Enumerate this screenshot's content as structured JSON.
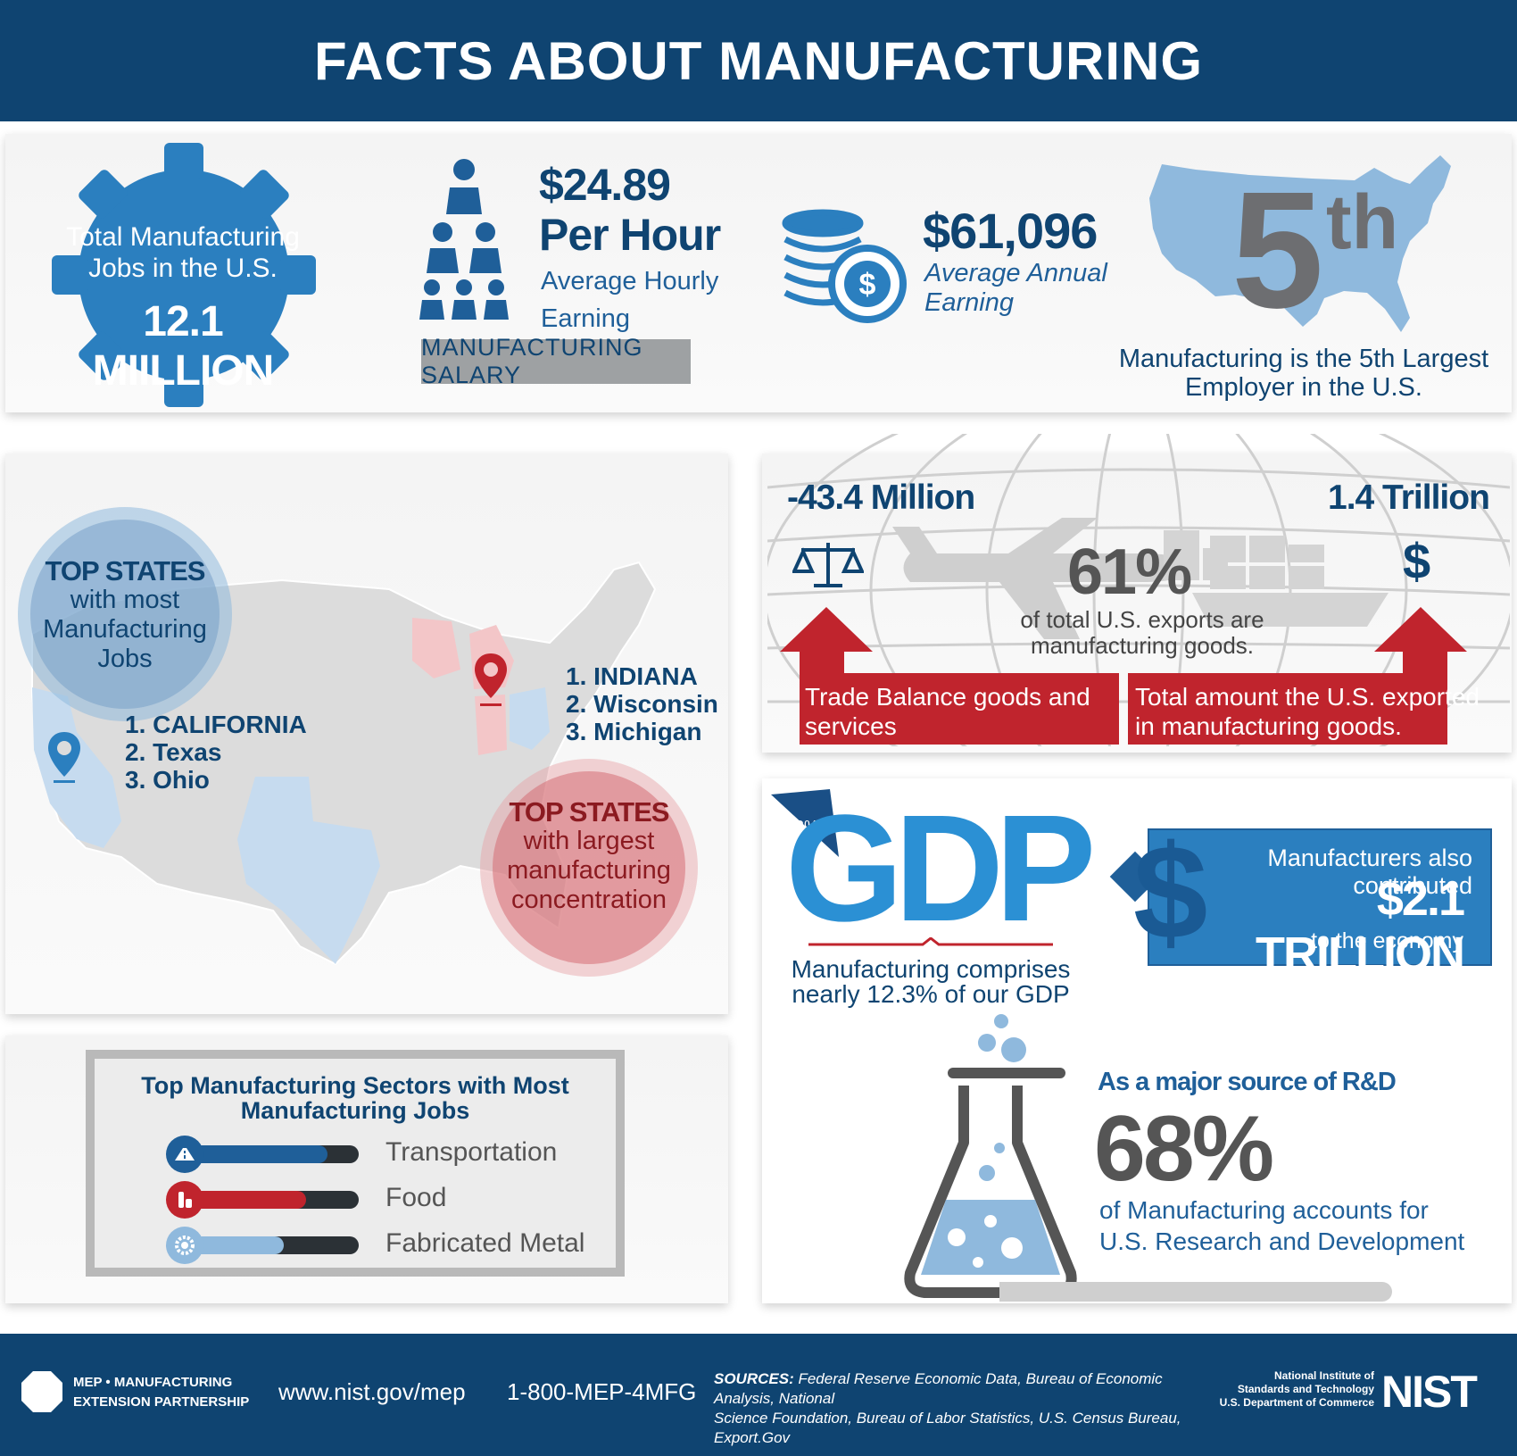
{
  "title": "FACTS ABOUT MANUFACTURING",
  "jobs": {
    "label_line1": "Total Manufacturing",
    "label_line2": "Jobs in the U.S.",
    "value": "12.1 MIILLION"
  },
  "salary": {
    "hourly": "$24.89",
    "per_hour": "Per Hour",
    "desc_line1": "Average Hourly",
    "desc_line2": "Earning",
    "badge": "MANUFACTURING SALARY"
  },
  "annual": {
    "value": "$61,096",
    "desc_line1": "Average Annual",
    "desc_line2": "Earning"
  },
  "rank": {
    "number": "5",
    "suffix": "th",
    "desc_line1": "Manufacturing is the 5th Largest",
    "desc_line2": "Employer in the U.S."
  },
  "states": {
    "most_jobs": {
      "heading": "TOP STATES",
      "sub_line1": "with most",
      "sub_line2": "Manufacturing",
      "sub_line3": "Jobs",
      "items": [
        "1. CALIFORNIA",
        "2. Texas",
        "3. Ohio"
      ]
    },
    "concentration": {
      "heading": "TOP STATES",
      "sub_line1": "with largest",
      "sub_line2": "manufacturing",
      "sub_line3": "concentration",
      "items": [
        "1. INDIANA",
        "2. Wisconsin",
        "3. Michigan"
      ]
    }
  },
  "trade": {
    "balance_value": "-43.4 Million",
    "exported_value": "1.4 Trillion",
    "percent": "61%",
    "percent_desc_line1": "of total U.S. exports are",
    "percent_desc_line2": "manufacturing goods.",
    "balance_label_line1": "Trade Balance goods and",
    "balance_label_line2": "services",
    "exported_label_line1": "Total amount the U.S. exported",
    "exported_label_line2": "in manufacturing goods.",
    "dollar_symbol": "$"
  },
  "gdp": {
    "slice_label": "12.3%",
    "word": "GDP",
    "desc_line1": "Manufacturing comprises",
    "desc_line2": "nearly 12.3% of our GDP",
    "contrib_line1": "Manufacturers also contributed",
    "contrib_value": "$2.1 TRILLION",
    "contrib_line3": "to the economy",
    "dollar_symbol": "$"
  },
  "rnd": {
    "heading": "As a major source of R&D",
    "percent": "68%",
    "desc_line1": "of Manufacturing accounts for",
    "desc_line2": "U.S. Research and Development"
  },
  "sectors": {
    "title_line1": "Top Manufacturing Sectors with Most",
    "title_line2": "Manufacturing Jobs",
    "items": [
      {
        "label": "Transportation",
        "fill": 0.82,
        "color": "#1f5f99"
      },
      {
        "label": "Food",
        "fill": 0.7,
        "color": "#c0242d"
      },
      {
        "label": "Fabricated Metal",
        "fill": 0.57,
        "color": "#8fb9dd"
      }
    ]
  },
  "footer": {
    "org_line1": "MEP • MANUFACTURING",
    "org_line2": "EXTENSION PARTNERSHIP",
    "website": "www.nist.gov/mep",
    "phone": "1-800-MEP-4MFG",
    "sources_label": "SOURCES:",
    "sources_line1": "Federal Reserve Economic Data, Bureau of Economic Analysis, National",
    "sources_line2": "Science Foundation, Bureau of Labor Statistics, U.S. Census Bureau, Export.Gov",
    "nist_line1": "National Institute of",
    "nist_line2": "Standards and Technology",
    "nist_line3": "U.S. Department of Commerce",
    "nist_logo": "NIST"
  },
  "icons": [
    "gear-icon",
    "worker-icon",
    "coin-stack-icon",
    "dollar-coin-icon",
    "us-map-icon",
    "location-pin-icon",
    "scale-icon",
    "airplane-icon",
    "cargo-ship-icon",
    "globe-grid-icon",
    "pie-slice-icon",
    "flask-icon",
    "road-icon",
    "bottle-icon",
    "gear-small-icon",
    "octagon-logo-icon"
  ],
  "colors": {
    "navy": "#0f4471",
    "blue": "#2b7fbf",
    "light_blue": "#8fb9dd",
    "red": "#c0242d",
    "gray_text": "#555555"
  }
}
